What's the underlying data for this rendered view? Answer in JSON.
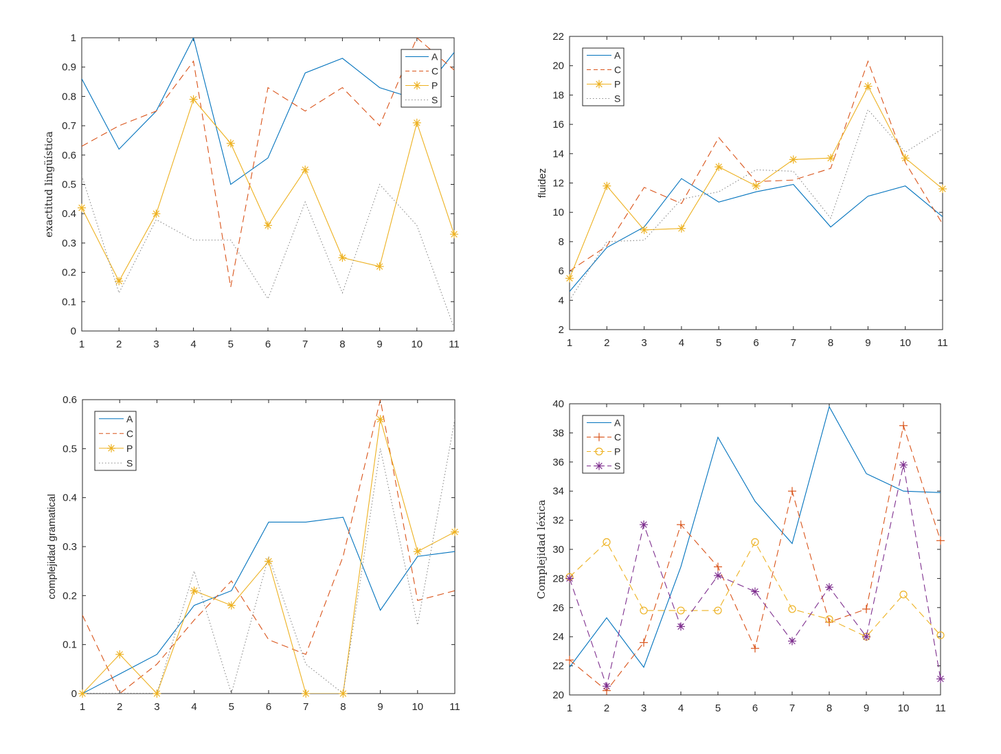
{
  "colors": {
    "A": "#0072BD",
    "C": "#D95319",
    "P": "#EDB120",
    "S": "#7E2F8E",
    "S_gray": "#888888",
    "axis": "#262626"
  },
  "chart_data": [
    {
      "type": "line",
      "title": "",
      "xlabel": "",
      "ylabel": "exactitud lingüística",
      "x": [
        1,
        2,
        3,
        4,
        5,
        6,
        7,
        8,
        9,
        10,
        11
      ],
      "xlim": [
        1,
        11
      ],
      "ylim": [
        0,
        1
      ],
      "xticks": [
        "1",
        "2",
        "3",
        "4",
        "5",
        "6",
        "7",
        "8",
        "9",
        "10",
        "11"
      ],
      "yticks": [
        "0",
        "0.1",
        "0.2",
        "0.3",
        "0.4",
        "0.5",
        "0.6",
        "0.7",
        "0.8",
        "0.9",
        "1"
      ],
      "legend_position": "top-right",
      "grid": false,
      "series": [
        {
          "name": "A",
          "style": "solid",
          "marker": "none",
          "values": [
            0.86,
            0.62,
            0.75,
            1.0,
            0.5,
            0.59,
            0.88,
            0.93,
            0.83,
            0.79,
            0.95
          ]
        },
        {
          "name": "C",
          "style": "dashed",
          "marker": "none",
          "values": [
            0.63,
            0.7,
            0.75,
            0.92,
            0.15,
            0.83,
            0.75,
            0.83,
            0.7,
            1.0,
            0.89
          ]
        },
        {
          "name": "P",
          "style": "solid",
          "marker": "star",
          "values": [
            0.42,
            0.17,
            0.4,
            0.79,
            0.64,
            0.36,
            0.55,
            0.25,
            0.22,
            0.71,
            0.33
          ]
        },
        {
          "name": "S",
          "style": "dotted",
          "marker": "none",
          "values": [
            0.53,
            0.13,
            0.38,
            0.31,
            0.31,
            0.11,
            0.44,
            0.13,
            0.5,
            0.36,
            0.01
          ]
        }
      ]
    },
    {
      "type": "line",
      "title": "",
      "xlabel": "",
      "ylabel": "fluidez",
      "x": [
        1,
        2,
        3,
        4,
        5,
        6,
        7,
        8,
        9,
        10,
        11
      ],
      "xlim": [
        1,
        11
      ],
      "ylim": [
        2,
        22
      ],
      "xticks": [
        "1",
        "2",
        "3",
        "4",
        "5",
        "6",
        "7",
        "8",
        "9",
        "10",
        "11"
      ],
      "yticks": [
        "2",
        "4",
        "6",
        "8",
        "10",
        "12",
        "14",
        "16",
        "18",
        "20",
        "22"
      ],
      "legend_position": "top-left",
      "grid": false,
      "series": [
        {
          "name": "A",
          "style": "solid",
          "marker": "none",
          "values": [
            4.6,
            7.6,
            9.0,
            12.3,
            10.7,
            11.4,
            11.9,
            9.0,
            11.1,
            11.8,
            9.7
          ]
        },
        {
          "name": "C",
          "style": "dashed",
          "marker": "none",
          "values": [
            6.0,
            7.7,
            11.7,
            10.6,
            15.1,
            12.1,
            12.2,
            13.0,
            20.3,
            13.4,
            9.2
          ]
        },
        {
          "name": "P",
          "style": "solid",
          "marker": "star",
          "values": [
            5.5,
            11.8,
            8.8,
            8.9,
            13.1,
            11.8,
            13.6,
            13.7,
            18.6,
            13.7,
            11.6
          ]
        },
        {
          "name": "S",
          "style": "dotted",
          "marker": "none",
          "values": [
            4.0,
            8.0,
            8.1,
            10.9,
            11.4,
            12.9,
            12.8,
            9.6,
            17.0,
            14.1,
            15.7
          ]
        }
      ]
    },
    {
      "type": "line",
      "title": "",
      "xlabel": "",
      "ylabel": "complejidad gramatical",
      "x": [
        1,
        2,
        3,
        4,
        5,
        6,
        7,
        8,
        9,
        10,
        11
      ],
      "xlim": [
        1,
        11
      ],
      "ylim": [
        0,
        0.6
      ],
      "xticks": [
        "1",
        "2",
        "3",
        "4",
        "5",
        "6",
        "7",
        "8",
        "9",
        "10",
        "11"
      ],
      "yticks": [
        "0",
        "0.1",
        "0.2",
        "0.3",
        "0.4",
        "0.5",
        "0.6"
      ],
      "legend_position": "top-left",
      "grid": false,
      "series": [
        {
          "name": "A",
          "style": "solid",
          "marker": "none",
          "values": [
            0,
            0.04,
            0.08,
            0.18,
            0.21,
            0.35,
            0.35,
            0.36,
            0.17,
            0.28,
            0.29
          ]
        },
        {
          "name": "C",
          "style": "dashed",
          "marker": "none",
          "values": [
            0.16,
            0,
            0.06,
            0.15,
            0.23,
            0.11,
            0.08,
            0.28,
            0.6,
            0.19,
            0.21
          ]
        },
        {
          "name": "P",
          "style": "solid",
          "marker": "star",
          "values": [
            0,
            0.08,
            0,
            0.21,
            0.18,
            0.27,
            0,
            0,
            0.56,
            0.29,
            0.33
          ]
        },
        {
          "name": "S",
          "style": "dotted",
          "marker": "none",
          "values": [
            0,
            0,
            0,
            0.25,
            0,
            0.28,
            0.06,
            0,
            0.5,
            0.14,
            0.56
          ]
        }
      ]
    },
    {
      "type": "line",
      "title": "",
      "xlabel": "",
      "ylabel": "Complejidad léxica",
      "x": [
        1,
        2,
        3,
        4,
        5,
        6,
        7,
        8,
        9,
        10,
        11
      ],
      "xlim": [
        1,
        11
      ],
      "ylim": [
        20,
        40
      ],
      "xticks": [
        "1",
        "2",
        "3",
        "4",
        "5",
        "6",
        "7",
        "8",
        "9",
        "10",
        "11"
      ],
      "yticks": [
        "20",
        "22",
        "24",
        "26",
        "28",
        "30",
        "32",
        "34",
        "36",
        "38",
        "40"
      ],
      "legend_position": "top-left",
      "grid": false,
      "series": [
        {
          "name": "A",
          "style": "solid",
          "marker": "none",
          "values": [
            21.9,
            25.3,
            21.9,
            28.8,
            37.7,
            33.3,
            30.4,
            39.8,
            35.2,
            34.0,
            33.9
          ]
        },
        {
          "name": "C",
          "style": "dashed",
          "marker": "plus",
          "values": [
            22.4,
            20.3,
            23.6,
            31.7,
            28.8,
            23.2,
            34.0,
            25.0,
            25.9,
            38.5,
            30.6
          ]
        },
        {
          "name": "P",
          "style": "dashed",
          "marker": "circle",
          "values": [
            28.1,
            30.5,
            25.8,
            25.8,
            25.8,
            30.5,
            25.9,
            25.2,
            24.0,
            26.9,
            24.1
          ]
        },
        {
          "name": "S",
          "style": "dashed",
          "marker": "asterisk",
          "values": [
            28.0,
            20.6,
            31.7,
            24.7,
            28.2,
            27.1,
            23.7,
            27.4,
            24.0,
            35.8,
            21.1
          ]
        }
      ]
    }
  ]
}
